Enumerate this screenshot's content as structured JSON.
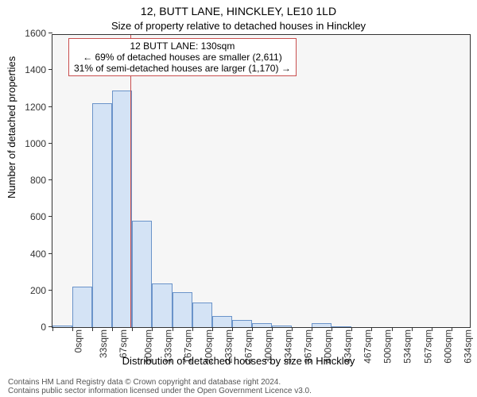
{
  "titles": {
    "main": "12, BUTT LANE, HINCKLEY, LE10 1LD",
    "sub": "Size of property relative to detached houses in Hinckley",
    "main_fontsize": 14,
    "sub_fontsize": 13,
    "color": "#000000"
  },
  "axes": {
    "ylabel": "Number of detached properties",
    "xlabel": "Distribution of detached houses by size in Hinckley",
    "label_fontsize": 13,
    "tick_fontsize": 12,
    "tick_color": "#333333"
  },
  "plot": {
    "background_color": "#f6f6f6",
    "border_color": "#333333",
    "bar_fill": "#d4e3f5",
    "bar_stroke": "#6a93c9",
    "ylim_max": 1600,
    "yticks": [
      0,
      200,
      400,
      600,
      800,
      1000,
      1200,
      1400,
      1600
    ],
    "xlim_max": 700,
    "bin_width": 33.33,
    "xtick_step_labels": [
      "0sqm",
      "33sqm",
      "67sqm",
      "100sqm",
      "133sqm",
      "167sqm",
      "200sqm",
      "233sqm",
      "267sqm",
      "300sqm",
      "334sqm",
      "367sqm",
      "400sqm",
      "434sqm",
      "467sqm",
      "500sqm",
      "534sqm",
      "567sqm",
      "600sqm",
      "634sqm",
      "667sqm"
    ],
    "bars": [
      10,
      220,
      1220,
      1290,
      580,
      240,
      190,
      135,
      60,
      40,
      20,
      10,
      0,
      22,
      5,
      0,
      0,
      0,
      0,
      0
    ],
    "marker": {
      "x": 130,
      "color": "#c94f4f"
    }
  },
  "callout": {
    "border_color": "#c94f4f",
    "bg_color": "#ffffff",
    "fontsize": 12,
    "lines": [
      "12 BUTT LANE: 130sqm",
      "← 69% of detached houses are smaller (2,611)",
      "31% of semi-detached houses are larger (1,170) →"
    ]
  },
  "footer": {
    "line1": "Contains HM Land Registry data © Crown copyright and database right 2024.",
    "line2": "Contains public sector information licensed under the Open Government Licence v3.0.",
    "fontsize": 10,
    "color": "#555555"
  }
}
